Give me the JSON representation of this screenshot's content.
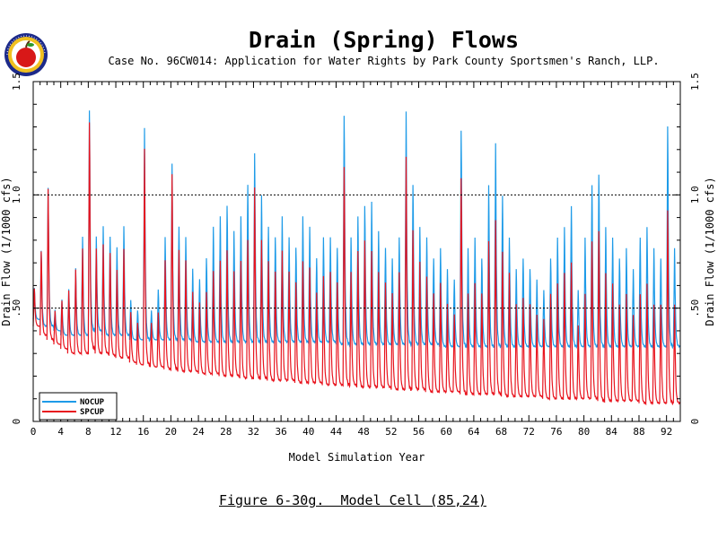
{
  "header": {
    "title": "Drain (Spring) Flows",
    "subtitle": "Case No. 96CW014: Application for Water Rights by Park County Sportsmen's Ranch, LLP."
  },
  "caption": "Figure 6-30g.  Model Cell (85,24)",
  "colors": {
    "nocup": "#1e9be8",
    "spcup": "#e8141e",
    "axis": "#000000"
  },
  "chart_data": {
    "type": "line",
    "title": "Drain (Spring) Flows",
    "xlabel": "Model Simulation Year",
    "ylabel": "Drain Flow  (1/1000 cfs)",
    "ylabel_right": "Drain Flow  (1/1000 cfs)",
    "xlim": [
      0,
      94
    ],
    "ylim": [
      0,
      1.5
    ],
    "x_ticks": [
      0,
      4,
      8,
      12,
      16,
      20,
      24,
      28,
      32,
      36,
      40,
      44,
      48,
      52,
      56,
      60,
      64,
      68,
      72,
      76,
      80,
      84,
      88,
      92
    ],
    "y_ticks": [
      0,
      0.5,
      1.0,
      1.5
    ],
    "y_tick_labels": [
      "0",
      ".50",
      "1.0",
      "1.5"
    ],
    "dashed_reference_lines": [
      0.5,
      1.0
    ],
    "legend_position": "bottom-left",
    "series": [
      {
        "name": "NOCUP",
        "color": "#1e9be8",
        "annual_peaks": [
          0.6,
          0.78,
          1.08,
          0.5,
          0.55,
          0.6,
          0.7,
          0.85,
          1.45,
          0.85,
          0.9,
          0.85,
          0.8,
          0.9,
          0.55,
          0.5,
          1.37,
          0.5,
          0.6,
          0.85,
          1.2,
          0.9,
          0.85,
          0.7,
          0.65,
          0.75,
          0.9,
          0.95,
          1.0,
          0.88,
          0.95,
          1.1,
          1.25,
          1.05,
          0.9,
          0.85,
          0.95,
          0.85,
          0.8,
          0.95,
          0.9,
          0.75,
          0.85,
          0.85,
          0.8,
          1.43,
          0.85,
          0.95,
          1.0,
          1.02,
          0.88,
          0.8,
          0.75,
          0.85,
          1.45,
          1.1,
          0.9,
          0.85,
          0.75,
          0.8,
          0.7,
          0.65,
          1.36,
          0.8,
          0.85,
          0.75,
          1.1,
          1.3,
          1.05,
          0.85,
          0.7,
          0.75,
          0.7,
          0.65,
          0.6,
          0.75,
          0.85,
          0.9,
          1.0,
          0.6,
          0.85,
          1.1,
          1.15,
          0.9,
          0.85,
          0.75,
          0.8,
          0.7,
          0.85,
          0.9,
          0.8,
          0.75,
          1.38,
          0.8
        ],
        "annual_troughs": [
          0.45,
          0.42,
          0.42,
          0.4,
          0.38,
          0.38,
          0.38,
          0.38,
          0.4,
          0.4,
          0.38,
          0.38,
          0.38,
          0.38,
          0.36,
          0.36,
          0.36,
          0.36,
          0.36,
          0.36,
          0.36,
          0.36,
          0.36,
          0.35,
          0.35,
          0.35,
          0.35,
          0.35,
          0.35,
          0.35,
          0.35,
          0.35,
          0.35,
          0.35,
          0.35,
          0.35,
          0.35,
          0.35,
          0.35,
          0.35,
          0.35,
          0.35,
          0.35,
          0.35,
          0.34,
          0.34,
          0.34,
          0.34,
          0.34,
          0.34,
          0.34,
          0.34,
          0.34,
          0.34,
          0.34,
          0.34,
          0.34,
          0.34,
          0.34,
          0.33,
          0.33,
          0.33,
          0.33,
          0.33,
          0.33,
          0.33,
          0.33,
          0.33,
          0.33,
          0.33,
          0.33,
          0.33,
          0.33,
          0.33,
          0.33,
          0.33,
          0.33,
          0.33,
          0.33,
          0.33,
          0.33,
          0.33,
          0.33,
          0.33,
          0.33,
          0.33,
          0.33,
          0.33,
          0.33,
          0.33,
          0.33,
          0.33,
          0.33,
          0.33
        ]
      },
      {
        "name": "SPCUP",
        "color": "#e8141e",
        "annual_peaks": [
          0.6,
          0.78,
          1.08,
          0.5,
          0.55,
          0.6,
          0.7,
          0.8,
          1.4,
          0.8,
          0.82,
          0.78,
          0.7,
          0.8,
          0.5,
          0.45,
          1.28,
          0.45,
          0.5,
          0.75,
          1.16,
          0.8,
          0.75,
          0.6,
          0.55,
          0.6,
          0.7,
          0.75,
          0.8,
          0.7,
          0.75,
          0.85,
          1.1,
          0.85,
          0.75,
          0.7,
          0.8,
          0.7,
          0.65,
          0.75,
          0.72,
          0.6,
          0.68,
          0.7,
          0.65,
          1.2,
          0.7,
          0.8,
          0.85,
          0.8,
          0.7,
          0.65,
          0.6,
          0.7,
          1.25,
          0.9,
          0.75,
          0.68,
          0.6,
          0.65,
          0.55,
          0.5,
          1.15,
          0.6,
          0.65,
          0.6,
          0.85,
          0.95,
          0.8,
          0.7,
          0.55,
          0.58,
          0.55,
          0.5,
          0.48,
          0.6,
          0.65,
          0.7,
          0.75,
          0.45,
          0.6,
          0.85,
          0.9,
          0.7,
          0.65,
          0.55,
          0.6,
          0.5,
          0.6,
          0.65,
          0.55,
          0.55,
          1.0,
          0.55
        ],
        "annual_troughs": [
          0.42,
          0.38,
          0.36,
          0.34,
          0.32,
          0.3,
          0.3,
          0.3,
          0.32,
          0.3,
          0.3,
          0.29,
          0.28,
          0.28,
          0.26,
          0.25,
          0.25,
          0.24,
          0.24,
          0.23,
          0.23,
          0.22,
          0.22,
          0.22,
          0.21,
          0.21,
          0.21,
          0.2,
          0.2,
          0.2,
          0.19,
          0.19,
          0.19,
          0.19,
          0.18,
          0.18,
          0.18,
          0.18,
          0.17,
          0.17,
          0.17,
          0.17,
          0.16,
          0.16,
          0.16,
          0.16,
          0.16,
          0.15,
          0.15,
          0.15,
          0.15,
          0.15,
          0.14,
          0.14,
          0.14,
          0.14,
          0.14,
          0.13,
          0.13,
          0.13,
          0.13,
          0.13,
          0.12,
          0.12,
          0.12,
          0.12,
          0.12,
          0.12,
          0.11,
          0.11,
          0.11,
          0.11,
          0.11,
          0.11,
          0.1,
          0.1,
          0.1,
          0.1,
          0.1,
          0.1,
          0.1,
          0.1,
          0.09,
          0.09,
          0.09,
          0.09,
          0.09,
          0.09,
          0.08,
          0.08,
          0.08,
          0.08,
          0.08,
          0.08
        ]
      }
    ]
  }
}
